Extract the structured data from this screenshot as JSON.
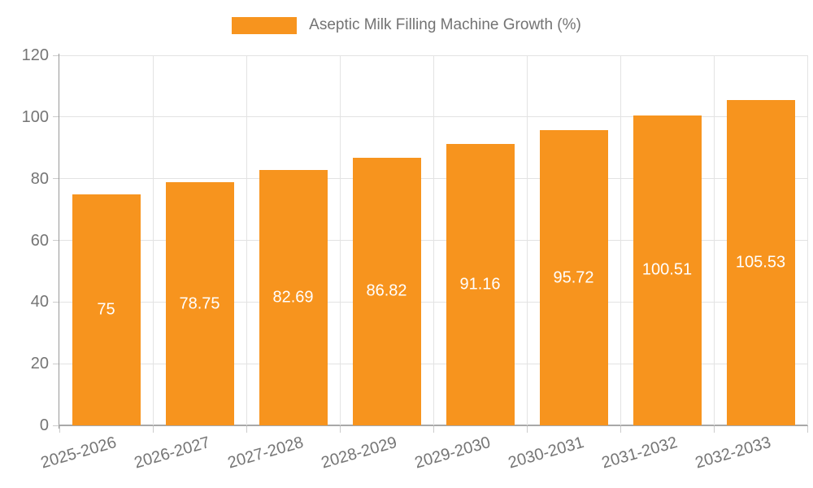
{
  "legend": {
    "label": "Aseptic Milk Filling Machine Growth (%)",
    "swatch_color": "#F7941E"
  },
  "chart_data": {
    "type": "bar",
    "title": "",
    "xlabel": "",
    "ylabel": "",
    "categories": [
      "2025-2026",
      "2026-2027",
      "2027-2028",
      "2028-2029",
      "2029-2030",
      "2030-2031",
      "2031-2032",
      "2032-2033"
    ],
    "series": [
      {
        "name": "Aseptic Milk Filling Machine Growth (%)",
        "values": [
          75,
          78.75,
          82.69,
          86.82,
          91.16,
          95.72,
          100.51,
          105.53
        ],
        "value_labels": [
          "75",
          "78.75",
          "82.69",
          "86.82",
          "91.16",
          "95.72",
          "100.51",
          "105.53"
        ]
      }
    ],
    "ylim": [
      0,
      120
    ],
    "yticks": [
      0,
      20,
      40,
      60,
      80,
      100,
      120
    ],
    "ytick_labels": [
      "0",
      "20",
      "40",
      "60",
      "80",
      "100",
      "120"
    ],
    "grid": true,
    "legend_position": "top",
    "bar_color": "#F7941E",
    "value_label_color": "#ffffff",
    "value_label_position": "inside-center"
  },
  "colors": {
    "bar": "#F7941E",
    "axis": "#999999",
    "gridline": "#e3e3e3",
    "tick_text": "#757575",
    "legend_text": "#737373",
    "background": "#ffffff"
  }
}
